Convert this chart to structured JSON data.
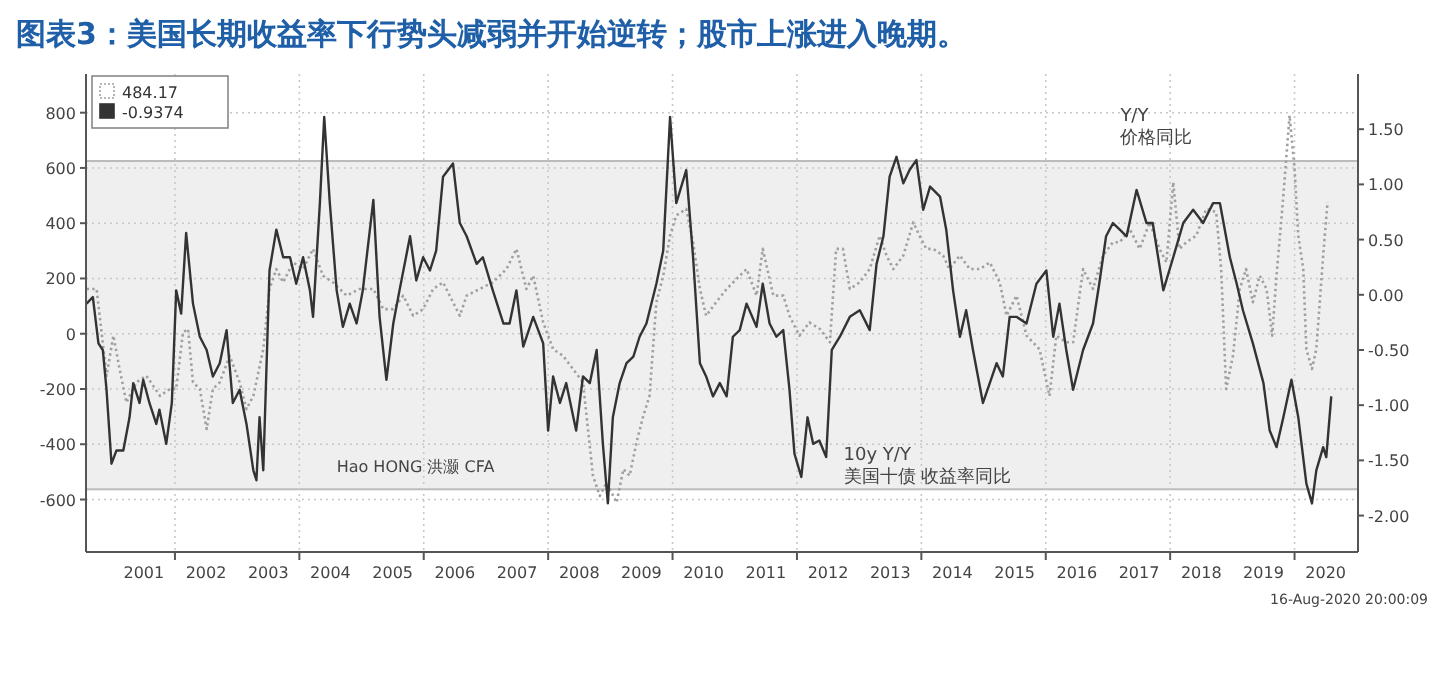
{
  "chart_data": {
    "type": "line",
    "title": "图表3：美国长期收益率下行势头减弱并开始逆转；股市上涨进入晚期。",
    "xlim": [
      2000.57,
      2021.02
    ],
    "xticks": [
      {
        "value": 2001.5,
        "label": "2001"
      },
      {
        "value": 2002.5,
        "label": "2002"
      },
      {
        "value": 2003.5,
        "label": "2003"
      },
      {
        "value": 2004.5,
        "label": "2004"
      },
      {
        "value": 2005.5,
        "label": "2005"
      },
      {
        "value": 2006.5,
        "label": "2006"
      },
      {
        "value": 2007.5,
        "label": "2007"
      },
      {
        "value": 2008.5,
        "label": "2008"
      },
      {
        "value": 2009.5,
        "label": "2009"
      },
      {
        "value": 2010.5,
        "label": "2010"
      },
      {
        "value": 2011.5,
        "label": "2011"
      },
      {
        "value": 2012.5,
        "label": "2012"
      },
      {
        "value": 2013.5,
        "label": "2013"
      },
      {
        "value": 2014.5,
        "label": "2014"
      },
      {
        "value": 2015.5,
        "label": "2015"
      },
      {
        "value": 2016.5,
        "label": "2016"
      },
      {
        "value": 2017.5,
        "label": "2017"
      },
      {
        "value": 2018.5,
        "label": "2018"
      },
      {
        "value": 2019.5,
        "label": "2019"
      },
      {
        "value": 2020.5,
        "label": "2020"
      },
      {
        "value": 2002,
        "label": null
      },
      {
        "value": 2004,
        "label": null
      },
      {
        "value": 2006,
        "label": null
      },
      {
        "value": 2008,
        "label": null
      },
      {
        "value": 2010,
        "label": null
      },
      {
        "value": 2012,
        "label": null
      },
      {
        "value": 2014,
        "label": null
      },
      {
        "value": 2016,
        "label": null
      },
      {
        "value": 2018,
        "label": null
      },
      {
        "value": 2020,
        "label": null
      }
    ],
    "ylim": [
      -790,
      940
    ],
    "yticks": [
      -600,
      -400,
      -200,
      0,
      200,
      400,
      600,
      800
    ],
    "y2lim": [
      -2.33,
      2.0
    ],
    "y2ticks": [
      {
        "value": -2,
        "label": "-2.00"
      },
      {
        "value": -1.5,
        "label": "-1.50"
      },
      {
        "value": -1,
        "label": "-1.00"
      },
      {
        "value": -0.5,
        "label": "-0.50"
      },
      {
        "value": 0,
        "label": "0.00"
      },
      {
        "value": 0.5,
        "label": "0.50"
      },
      {
        "value": 1,
        "label": "1.00"
      },
      {
        "value": 1.5,
        "label": "1.50"
      }
    ],
    "grid": true,
    "legend": "top left",
    "bands": [
      {
        "axis": "y",
        "from": -563,
        "to": 625,
        "color": "#efefef"
      }
    ],
    "annotations": [
      "Hao HONG 洪灏 CFA",
      "10y Y/Y\n美国十债 收益率同比",
      "Y/Y\n价格同比",
      "16-Aug-2020 20:00:09"
    ],
    "series": [
      {
        "name": "484.17",
        "color": "#a0a0a0",
        "line_style": "dotted",
        "x": [
          2000.58,
          2000.74,
          2000.9,
          2001.01,
          2001.11,
          2001.22,
          2001.38,
          2001.54,
          2001.76,
          2001.92,
          2002.02,
          2002.13,
          2002.21,
          2002.29,
          2002.4,
          2002.51,
          2002.61,
          2002.72,
          2002.88,
          2003.04,
          2003.15,
          2003.26,
          2003.42,
          2003.52,
          2003.63,
          2003.74,
          2003.9,
          2004.06,
          2004.22,
          2004.38,
          2004.54,
          2004.76,
          2004.97,
          2005.19,
          2005.35,
          2005.51,
          2005.67,
          2005.83,
          2005.99,
          2006.15,
          2006.31,
          2006.47,
          2006.58,
          2006.69,
          2006.9,
          2007.11,
          2007.33,
          2007.49,
          2007.65,
          2007.76,
          2007.92,
          2008.08,
          2008.24,
          2008.4,
          2008.56,
          2008.72,
          2008.83,
          2008.94,
          2009.1,
          2009.21,
          2009.31,
          2009.42,
          2009.53,
          2009.63,
          2009.74,
          2009.85,
          2009.96,
          2010.06,
          2010.22,
          2010.33,
          2010.44,
          2010.54,
          2010.7,
          2010.87,
          2011.08,
          2011.19,
          2011.35,
          2011.45,
          2011.62,
          2011.78,
          2011.88,
          2012.04,
          2012.2,
          2012.37,
          2012.53,
          2012.63,
          2012.74,
          2012.85,
          2013.01,
          2013.17,
          2013.33,
          2013.44,
          2013.55,
          2013.71,
          2013.87,
          2013.97,
          2014.08,
          2014.19,
          2014.35,
          2014.45,
          2014.62,
          2014.78,
          2014.94,
          2015.1,
          2015.26,
          2015.37,
          2015.53,
          2015.69,
          2015.9,
          2016.06,
          2016.17,
          2016.33,
          2016.44,
          2016.6,
          2016.76,
          2016.92,
          2017.08,
          2017.19,
          2017.35,
          2017.51,
          2017.67,
          2017.83,
          2017.94,
          2018.05,
          2018.15,
          2018.26,
          2018.42,
          2018.58,
          2018.74,
          2018.82,
          2018.9,
          2019.01,
          2019.12,
          2019.22,
          2019.33,
          2019.44,
          2019.55,
          2019.64,
          2019.71,
          2019.82,
          2019.92,
          2020.0,
          2020.06,
          2020.14,
          2020.19,
          2020.28,
          2020.35,
          2020.46,
          2020.53
        ],
        "values": [
          162,
          162,
          -152,
          -7,
          -128,
          -249,
          -176,
          -152,
          -225,
          -200,
          -200,
          5,
          17,
          -176,
          -200,
          -345,
          -200,
          -176,
          -80,
          -176,
          -273,
          -225,
          -56,
          162,
          234,
          186,
          258,
          234,
          307,
          210,
          186,
          138,
          162,
          162,
          89,
          89,
          138,
          65,
          89,
          162,
          186,
          114,
          65,
          138,
          162,
          186,
          234,
          307,
          162,
          210,
          41,
          -56,
          -80,
          -128,
          -176,
          -514,
          -587,
          -539,
          -611,
          -490,
          -514,
          -394,
          -297,
          -225,
          114,
          210,
          355,
          428,
          452,
          331,
          162,
          65,
          114,
          162,
          210,
          234,
          138,
          307,
          138,
          138,
          65,
          -7,
          41,
          17,
          -31,
          307,
          307,
          162,
          186,
          234,
          355,
          283,
          234,
          283,
          403,
          355,
          307,
          307,
          283,
          234,
          283,
          234,
          234,
          258,
          186,
          65,
          138,
          -7,
          -56,
          -225,
          -7,
          -31,
          -31,
          234,
          162,
          283,
          331,
          331,
          379,
          307,
          403,
          307,
          258,
          548,
          307,
          331,
          355,
          452,
          440,
          234,
          -200,
          -80,
          162,
          234,
          114,
          210,
          162,
          -7,
          210,
          500,
          790,
          597,
          355,
          234,
          -56,
          -128,
          -56,
          283,
          476
        ]
      },
      {
        "name": "-0.9374",
        "color": "#333333",
        "line_style": "solid",
        "axis": "y2",
        "x": [
          2000.58,
          2000.68,
          2000.77,
          2000.84,
          2000.9,
          2000.98,
          2001.06,
          2001.17,
          2001.27,
          2001.33,
          2001.43,
          2001.49,
          2001.59,
          2001.7,
          2001.75,
          2001.86,
          2001.95,
          2002.02,
          2002.1,
          2002.18,
          2002.29,
          2002.4,
          2002.51,
          2002.61,
          2002.72,
          2002.83,
          2002.93,
          2003.04,
          2003.15,
          2003.26,
          2003.31,
          2003.36,
          2003.42,
          2003.52,
          2003.63,
          2003.74,
          2003.85,
          2003.95,
          2004.06,
          2004.17,
          2004.22,
          2004.33,
          2004.4,
          2004.49,
          2004.6,
          2004.7,
          2004.81,
          2004.92,
          2005.02,
          2005.19,
          2005.29,
          2005.4,
          2005.51,
          2005.61,
          2005.78,
          2005.88,
          2005.99,
          2006.1,
          2006.2,
          2006.31,
          2006.47,
          2006.58,
          2006.69,
          2006.85,
          2006.95,
          2007.11,
          2007.28,
          2007.38,
          2007.49,
          2007.6,
          2007.76,
          2007.92,
          2008.0,
          2008.08,
          2008.19,
          2008.29,
          2008.45,
          2008.56,
          2008.67,
          2008.78,
          2008.88,
          2008.96,
          2009.04,
          2009.15,
          2009.26,
          2009.37,
          2009.47,
          2009.58,
          2009.74,
          2009.85,
          2009.96,
          2010.06,
          2010.22,
          2010.33,
          2010.44,
          2010.54,
          2010.65,
          2010.76,
          2010.87,
          2010.97,
          2011.08,
          2011.19,
          2011.35,
          2011.45,
          2011.56,
          2011.67,
          2011.78,
          2011.88,
          2011.96,
          2012.07,
          2012.17,
          2012.26,
          2012.36,
          2012.47,
          2012.56,
          2012.69,
          2012.85,
          2013.01,
          2013.17,
          2013.28,
          2013.39,
          2013.49,
          2013.6,
          2013.71,
          2013.81,
          2013.92,
          2014.03,
          2014.14,
          2014.3,
          2014.4,
          2014.51,
          2014.62,
          2014.72,
          2014.83,
          2014.99,
          2015.1,
          2015.21,
          2015.31,
          2015.42,
          2015.53,
          2015.69,
          2015.85,
          2016.01,
          2016.12,
          2016.22,
          2016.33,
          2016.44,
          2016.6,
          2016.76,
          2016.86,
          2016.97,
          2017.08,
          2017.19,
          2017.3,
          2017.46,
          2017.62,
          2017.72,
          2017.89,
          2018.05,
          2018.21,
          2018.37,
          2018.53,
          2018.69,
          2018.8,
          2018.96,
          2019.07,
          2019.17,
          2019.33,
          2019.5,
          2019.6,
          2019.71,
          2019.82,
          2019.95,
          2020.06,
          2020.19,
          2020.28,
          2020.35,
          2020.46,
          2020.51,
          2020.59
        ],
        "values": [
          -0.08,
          -0.02,
          -0.44,
          -0.5,
          -0.86,
          -1.53,
          -1.41,
          -1.41,
          -1.11,
          -0.8,
          -0.98,
          -0.77,
          -0.98,
          -1.17,
          -1.04,
          -1.35,
          -0.98,
          0.04,
          -0.17,
          0.56,
          -0.08,
          -0.38,
          -0.5,
          -0.74,
          -0.62,
          -0.32,
          -0.98,
          -0.86,
          -1.17,
          -1.59,
          -1.68,
          -1.11,
          -1.59,
          0.22,
          0.59,
          0.34,
          0.34,
          0.1,
          0.34,
          0.04,
          -0.2,
          0.83,
          1.61,
          0.83,
          0.04,
          -0.29,
          -0.08,
          -0.26,
          0.04,
          0.86,
          -0.2,
          -0.77,
          -0.26,
          0.04,
          0.53,
          0.13,
          0.34,
          0.22,
          0.4,
          1.07,
          1.19,
          0.65,
          0.53,
          0.28,
          0.34,
          0.04,
          -0.26,
          -0.26,
          0.04,
          -0.47,
          -0.2,
          -0.44,
          -1.23,
          -0.74,
          -0.98,
          -0.8,
          -1.23,
          -0.74,
          -0.8,
          -0.5,
          -1.35,
          -1.89,
          -1.11,
          -0.8,
          -0.62,
          -0.56,
          -0.38,
          -0.26,
          0.1,
          0.4,
          1.61,
          0.83,
          1.13,
          0.34,
          -0.62,
          -0.74,
          -0.92,
          -0.8,
          -0.92,
          -0.38,
          -0.32,
          -0.08,
          -0.29,
          0.1,
          -0.26,
          -0.38,
          -0.32,
          -0.86,
          -1.44,
          -1.65,
          -1.11,
          -1.35,
          -1.32,
          -1.47,
          -0.5,
          -0.38,
          -0.2,
          -0.14,
          -0.32,
          0.28,
          0.53,
          1.07,
          1.25,
          1.01,
          1.13,
          1.22,
          0.77,
          0.98,
          0.89,
          0.59,
          0.04,
          -0.38,
          -0.14,
          -0.5,
          -0.98,
          -0.8,
          -0.62,
          -0.74,
          -0.2,
          -0.2,
          -0.26,
          0.1,
          0.22,
          -0.38,
          -0.08,
          -0.5,
          -0.86,
          -0.5,
          -0.26,
          0.1,
          0.53,
          0.65,
          0.59,
          0.53,
          0.95,
          0.65,
          0.65,
          0.04,
          0.34,
          0.65,
          0.77,
          0.65,
          0.83,
          0.83,
          0.34,
          0.1,
          -0.14,
          -0.44,
          -0.8,
          -1.23,
          -1.38,
          -1.11,
          -0.77,
          -1.11,
          -1.71,
          -1.89,
          -1.59,
          -1.38,
          -1.47,
          -0.92
        ]
      }
    ]
  }
}
